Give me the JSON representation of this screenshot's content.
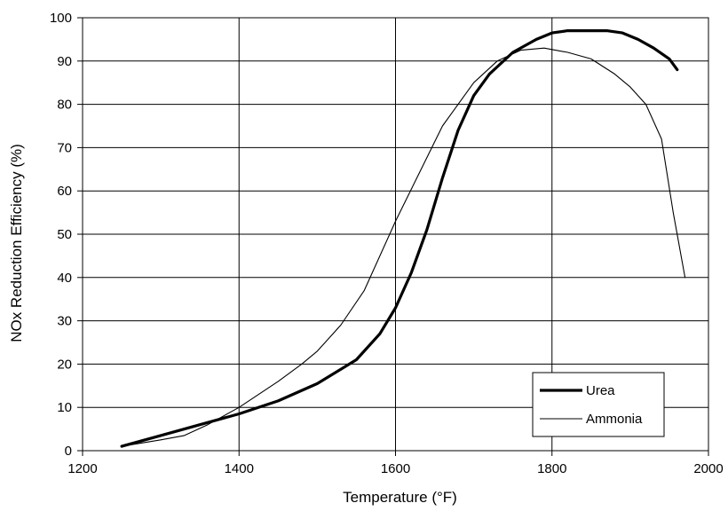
{
  "chart_data": {
    "type": "line",
    "title": "",
    "xlabel": "Temperature (°F)",
    "ylabel": "NOx Reduction Efficiency (%)",
    "xlim": [
      1200,
      2000
    ],
    "ylim": [
      0,
      100
    ],
    "x_ticks": [
      "1200",
      "1400",
      "1600",
      "1800",
      "2000"
    ],
    "y_ticks": [
      "0",
      "10",
      "20",
      "30",
      "40",
      "50",
      "60",
      "70",
      "80",
      "90",
      "100"
    ],
    "grid": true,
    "legend_position": "bottom-right",
    "series": [
      {
        "name": "Urea",
        "color": "#000000",
        "x": [
          1250,
          1300,
          1350,
          1400,
          1450,
          1500,
          1550,
          1580,
          1600,
          1620,
          1640,
          1660,
          1680,
          1700,
          1720,
          1750,
          1780,
          1800,
          1820,
          1850,
          1870,
          1890,
          1910,
          1930,
          1950,
          1960
        ],
        "y": [
          1,
          3.5,
          6,
          8.5,
          11.5,
          15.5,
          21,
          27,
          33,
          41,
          51,
          63,
          74,
          82,
          87,
          92,
          95,
          96.5,
          97,
          97,
          97,
          96.5,
          95,
          93,
          90.5,
          88
        ]
      },
      {
        "name": "Ammonia",
        "color": "#000000",
        "x": [
          1250,
          1300,
          1330,
          1360,
          1400,
          1450,
          1480,
          1500,
          1530,
          1560,
          1600,
          1630,
          1660,
          1700,
          1730,
          1760,
          1790,
          1820,
          1850,
          1880,
          1900,
          1920,
          1940,
          1955,
          1970
        ],
        "y": [
          1,
          2.5,
          3.5,
          6,
          10,
          16,
          20,
          23,
          29,
          37,
          53,
          64,
          75,
          85,
          90,
          92.5,
          93,
          92,
          90.5,
          87,
          84,
          80,
          72,
          55,
          40
        ]
      }
    ]
  }
}
